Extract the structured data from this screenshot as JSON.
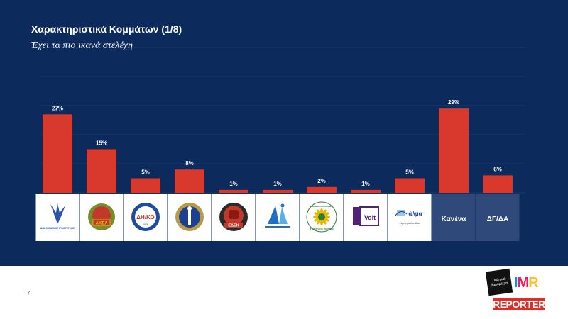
{
  "header": {
    "title": "Χαρακτηριστικά Κομμάτων (1/8)",
    "subtitle": "Έχει τα πιο ικανά στελέχη"
  },
  "colors": {
    "background": "#0d2a5c",
    "bar": "#d9382d",
    "logo_tile": "#ffffff",
    "text_tile": "#2f4a7a",
    "gridline": "#2b4678"
  },
  "chart_data": {
    "type": "bar",
    "title": "Έχει τα πιο ικανά στελέχη",
    "categories": [
      "Δημοκρατικός Συναγερμός",
      "ΑΚΕΛ",
      "ΔΗΚΟ",
      "ΔΗΠΑ",
      "ΕΛΑΜ",
      "ΕΔΕΚ",
      "Κίνημα Οικολόγων",
      "Volt",
      "Άλμα",
      "Κανένα",
      "ΔΓ/ΔΑ"
    ],
    "values": [
      27,
      15,
      5,
      8,
      1,
      1,
      2,
      1,
      5,
      29,
      6
    ],
    "value_labels": [
      "27%",
      "15%",
      "5%",
      "8%",
      "1%",
      "1%",
      "2%",
      "1%",
      "5%",
      "29%",
      "6%"
    ],
    "unit": "%",
    "ylim": [
      0,
      50
    ],
    "grid": true
  },
  "tiles": {
    "text_labels": [
      "",
      "",
      "",
      "",
      "",
      "",
      "",
      "",
      "",
      "Κανένα",
      "ΔΓ/ΔΑ"
    ],
    "logo_captions": {
      "disy": "ΔΗΜΟΚΡΑΤΙΚΟΣ ΣΥΝΑΓΕΡΜΟΣ",
      "akel": "ΑΚΕΛ",
      "diko": "ΔΗ/ΚΟ",
      "diko_year": "1976",
      "edek": "ΕΔΕΚ",
      "kinima": "ΚΙΝΗΜΑ ΟΙΚΟΛΟΓΩΝ",
      "kinima_sub": "ΣΥΝΕΡΓΑΣΙΑ ΠΟΛΙΤΩΝ",
      "volt": "Volt",
      "alma": "άλμα",
      "alma_sub": "Φέρνω για ένα Άλμα!"
    },
    "logo_icons": [
      "disy-phoenix-icon",
      "akel-emblem-icon",
      "diko-emblem-icon",
      "dipa-emblem-icon",
      "edek-fist-icon",
      "elam-figure-icon",
      "kinima-sunflower-icon",
      "volt-logo-icon",
      "alma-logo-icon"
    ]
  },
  "footer": {
    "page_number": "7",
    "brand_small": "Πολιτικό βαρόμετρο",
    "brand_imr": "IMR",
    "brand_reporter": "REPORTER"
  }
}
